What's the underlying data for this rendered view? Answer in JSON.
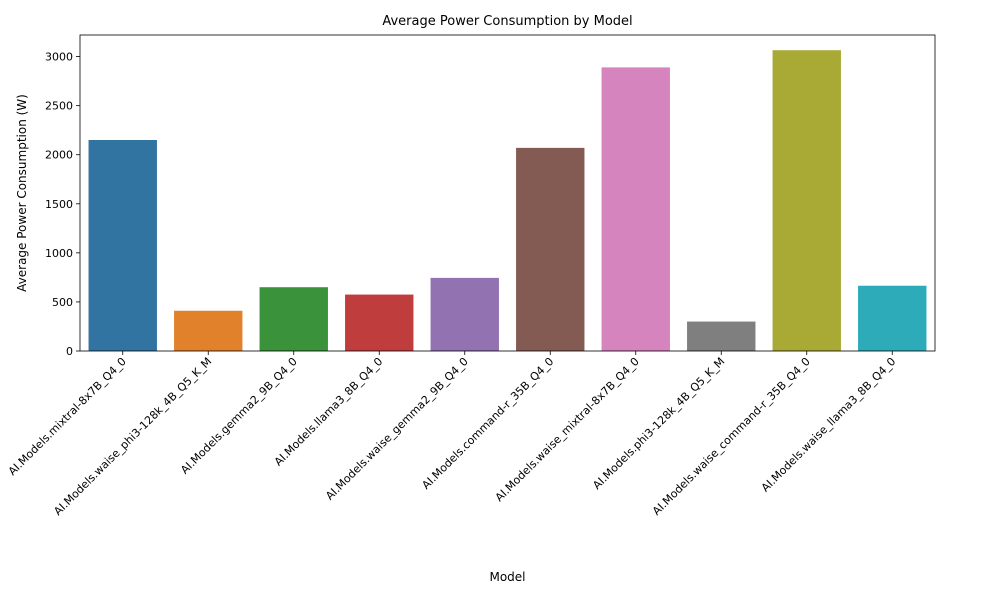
{
  "chart_data": {
    "type": "bar",
    "title": "Average Power Consumption by Model",
    "xlabel": "Model",
    "ylabel": "Average Power Consumption (W)",
    "ylim": [
      0,
      3220
    ],
    "yticks": [
      0,
      500,
      1000,
      1500,
      2000,
      2500,
      3000
    ],
    "grid": false,
    "categories": [
      "AI.Models.mixtral-8x7B_Q4_0",
      "AI.Models.waise_phi3-128k_4B_Q5_K_M",
      "AI.Models.gemma2_9B_Q4_0",
      "AI.Models.llama3_8B_Q4_0",
      "AI.Models.waise_gemma2_9B_Q4_0",
      "AI.Models.command-r_35B_Q4_0",
      "AI.Models.waise_mixtral-8x7B_Q4_0",
      "AI.Models.phi3-128k_4B_Q5_K_M",
      "AI.Models.waise_command-r_35B_Q4_0",
      "AI.Models.waise_llama3_8B_Q4_0"
    ],
    "values": [
      2150,
      410,
      650,
      575,
      745,
      2070,
      2890,
      300,
      3065,
      665
    ],
    "colors": [
      "#3274a1",
      "#e1812c",
      "#3a923a",
      "#c03d3e",
      "#9372b2",
      "#845b53",
      "#d684bd",
      "#7f7f7f",
      "#a9aa35",
      "#2eabb8"
    ]
  }
}
